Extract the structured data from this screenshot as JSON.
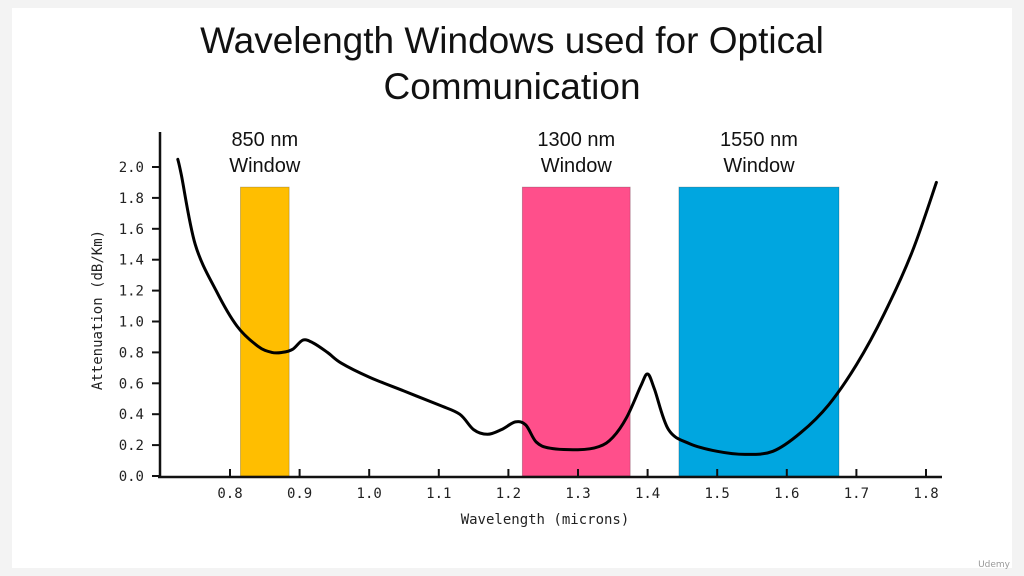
{
  "title_lines": [
    "Wavelength Windows used for Optical",
    "Communication"
  ],
  "watermark": "Udemy",
  "chart_data": {
    "type": "line",
    "title": "Wavelength Windows used for Optical Communication",
    "xlabel": "Wavelength (microns)",
    "ylabel": "Attenuation (dB/Km)",
    "xlim": [
      0.7,
      1.82
    ],
    "ylim": [
      0.0,
      2.0
    ],
    "x_ticks": [
      "0.8",
      "0.9",
      "1.0",
      "1.1",
      "1.2",
      "1.3",
      "1.4",
      "1.5",
      "1.6",
      "1.7",
      "1.8"
    ],
    "y_ticks": [
      "0.0",
      "0.2",
      "0.4",
      "0.6",
      "0.8",
      "1.0",
      "1.2",
      "1.4",
      "1.6",
      "1.8",
      "2.0"
    ],
    "grid": false,
    "windows": [
      {
        "label_line1": "850 nm",
        "label_line2": "Window",
        "x_start": 0.815,
        "x_end": 0.885,
        "color": "#FFBE00"
      },
      {
        "label_line1": "1300 nm",
        "label_line2": "Window",
        "x_start": 1.22,
        "x_end": 1.375,
        "color": "#FF4F8B"
      },
      {
        "label_line1": "1550 nm",
        "label_line2": "Window",
        "x_start": 1.445,
        "x_end": 1.675,
        "color": "#00A6E0"
      }
    ],
    "window_top": 1.87,
    "series": [
      {
        "color": "#000000",
        "x": [
          0.725,
          0.73,
          0.75,
          0.78,
          0.81,
          0.84,
          0.86,
          0.875,
          0.89,
          0.905,
          0.92,
          0.94,
          0.96,
          1.0,
          1.05,
          1.1,
          1.13,
          1.15,
          1.17,
          1.19,
          1.21,
          1.225,
          1.24,
          1.26,
          1.3,
          1.33,
          1.35,
          1.37,
          1.39,
          1.4,
          1.41,
          1.43,
          1.46,
          1.5,
          1.54,
          1.58,
          1.62,
          1.66,
          1.7,
          1.74,
          1.78,
          1.815
        ],
        "y": [
          2.05,
          1.95,
          1.5,
          1.2,
          0.97,
          0.84,
          0.8,
          0.8,
          0.82,
          0.88,
          0.86,
          0.8,
          0.73,
          0.64,
          0.55,
          0.46,
          0.4,
          0.3,
          0.27,
          0.3,
          0.35,
          0.33,
          0.22,
          0.18,
          0.17,
          0.19,
          0.25,
          0.38,
          0.58,
          0.66,
          0.56,
          0.3,
          0.21,
          0.16,
          0.14,
          0.16,
          0.28,
          0.46,
          0.72,
          1.05,
          1.45,
          1.9
        ]
      }
    ]
  }
}
